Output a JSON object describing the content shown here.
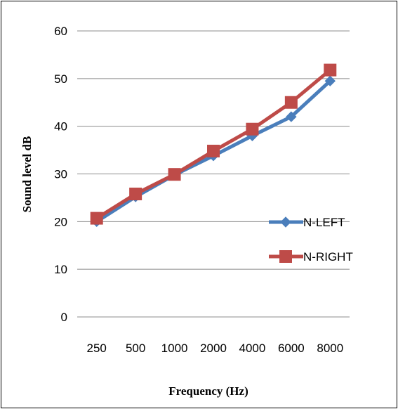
{
  "chart_data": {
    "type": "line",
    "categories": [
      "250",
      "500",
      "1000",
      "2000",
      "4000",
      "6000",
      "8000"
    ],
    "series": [
      {
        "name": "N-LEFT",
        "values": [
          20.0,
          25.2,
          29.8,
          33.8,
          38.0,
          42.0,
          49.5
        ],
        "color": "#4a7ebb",
        "marker": "diamond"
      },
      {
        "name": "N-RIGHT",
        "values": [
          20.7,
          25.8,
          29.9,
          34.8,
          39.4,
          45.0,
          51.8
        ],
        "color": "#be4b48",
        "marker": "square"
      }
    ],
    "title": "",
    "xlabel": "Frequency  (Hz)",
    "ylabel": "Sound level dB",
    "ylim": [
      0,
      60
    ],
    "yticks": [
      "0",
      "10",
      "20",
      "30",
      "40",
      "50",
      "60"
    ],
    "grid": "horizontal",
    "legend_position": "right"
  }
}
